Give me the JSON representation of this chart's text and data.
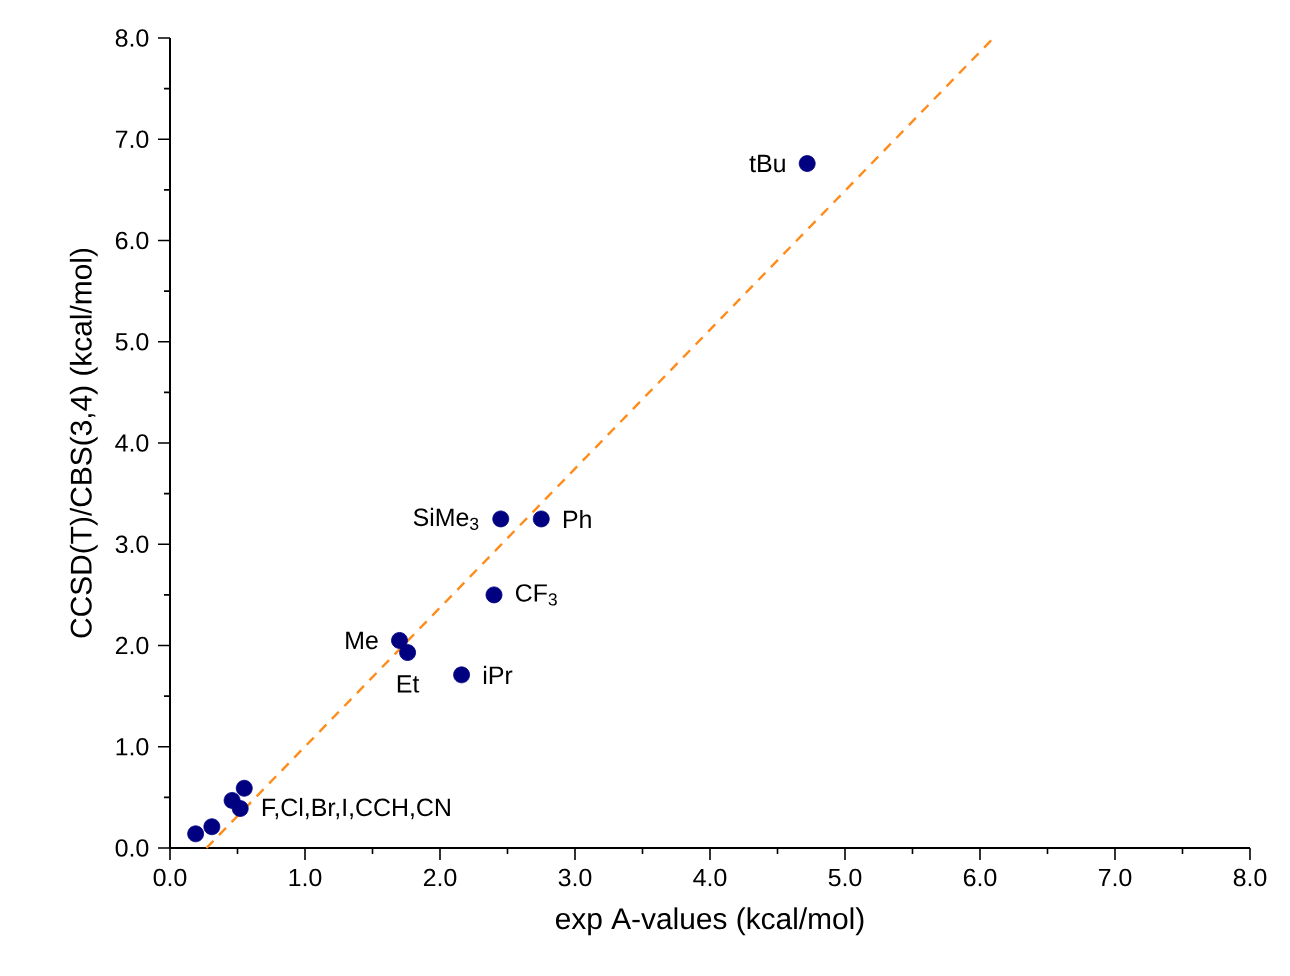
{
  "chart_data": {
    "type": "scatter",
    "xlabel": "exp A-values (kcal/mol)",
    "ylabel": "CCSD(T)/CBS(3,4) (kcal/mol)",
    "xlim": [
      0,
      8
    ],
    "ylim": [
      0,
      8
    ],
    "xticks": [
      {
        "value": 0,
        "label": "0.0"
      },
      {
        "value": 1,
        "label": "1.0"
      },
      {
        "value": 2,
        "label": "2.0"
      },
      {
        "value": 3,
        "label": "3.0"
      },
      {
        "value": 4,
        "label": "4.0"
      },
      {
        "value": 5,
        "label": "5.0"
      },
      {
        "value": 6,
        "label": "6.0"
      },
      {
        "value": 7,
        "label": "7.0"
      },
      {
        "value": 8,
        "label": "8.0"
      }
    ],
    "yticks": [
      {
        "value": 0,
        "label": "0.0"
      },
      {
        "value": 1,
        "label": "1.0"
      },
      {
        "value": 2,
        "label": "2.0"
      },
      {
        "value": 3,
        "label": "3.0"
      },
      {
        "value": 4,
        "label": "4.0"
      },
      {
        "value": 5,
        "label": "5.0"
      },
      {
        "value": 6,
        "label": "6.0"
      },
      {
        "value": 7,
        "label": "7.0"
      },
      {
        "value": 8,
        "label": "8.0"
      }
    ],
    "grid": false,
    "series": [
      {
        "type": "line",
        "color": "#ff8c1a",
        "line_style": "dashed",
        "marker": "none",
        "x": [
          0.27,
          6.1
        ],
        "values": [
          0.0,
          8.0
        ]
      },
      {
        "color": "#000080",
        "marker": "circle",
        "x": [
          0.19,
          0.31,
          0.46,
          0.52,
          0.55,
          1.7,
          1.76,
          2.16,
          2.4,
          2.45,
          2.75,
          4.72
        ],
        "values": [
          0.14,
          0.21,
          0.47,
          0.39,
          0.59,
          2.05,
          1.93,
          1.71,
          2.5,
          3.25,
          3.25,
          6.76
        ]
      }
    ],
    "annotations": [
      {
        "text": "tBu",
        "x": 4.72,
        "y": 6.76
      },
      {
        "text": "SiMe$_{3}$",
        "x": 2.45,
        "y": 3.25
      },
      {
        "text": "Ph",
        "x": 2.75,
        "y": 3.25
      },
      {
        "text": "CF$_{3}$",
        "x": 2.4,
        "y": 2.5
      },
      {
        "text": "Me",
        "x": 1.7,
        "y": 2.05
      },
      {
        "text": "Et",
        "x": 1.76,
        "y": 1.93
      },
      {
        "text": "iPr",
        "x": 2.16,
        "y": 1.71
      },
      {
        "text": "F,Cl,Br,I,CCH,CN",
        "x": 0.52,
        "y": 0.39
      }
    ]
  }
}
